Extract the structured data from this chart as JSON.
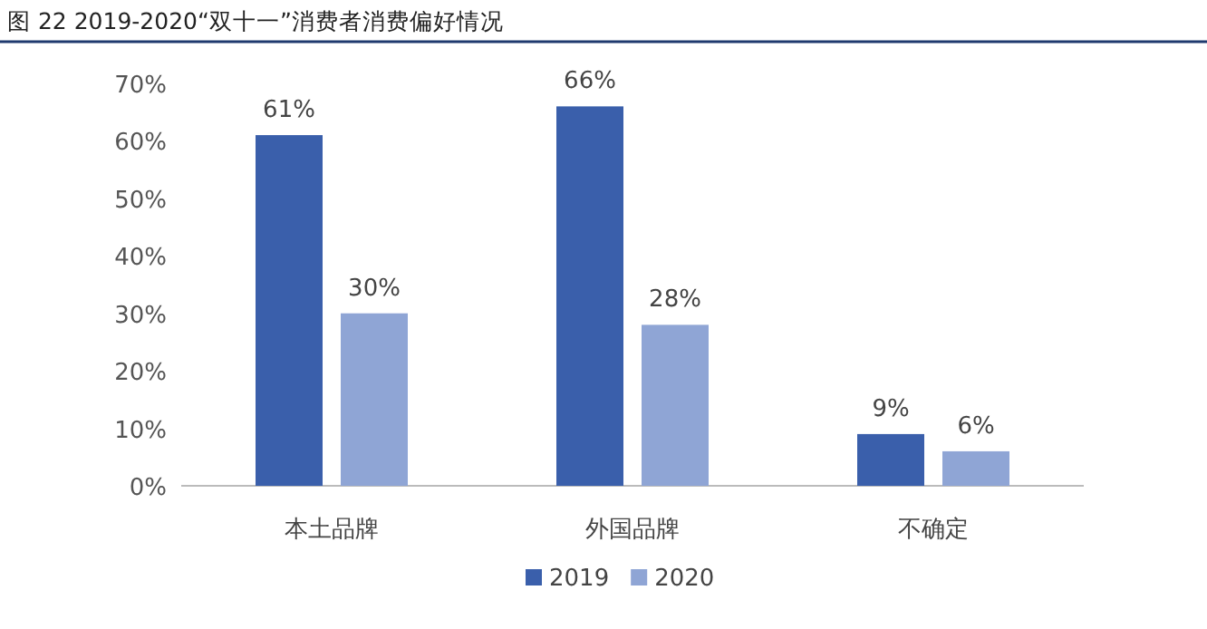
{
  "chart_data": {
    "type": "bar",
    "title": "图 22 2019-2020“双十一”消费者消费偏好情况",
    "categories": [
      "本土品牌",
      "外国品牌",
      "不确定"
    ],
    "series": [
      {
        "name": "2019",
        "color": "#3a5fab",
        "values": [
          61,
          66,
          9
        ],
        "value_labels": [
          "61%",
          "66%",
          "9%"
        ]
      },
      {
        "name": "2020",
        "color": "#8fa5d5",
        "values": [
          30,
          28,
          6
        ],
        "value_labels": [
          "30%",
          "28%",
          "6%"
        ]
      }
    ],
    "ylim": [
      0,
      70
    ],
    "yticks": [
      {
        "value": 0,
        "label": "0%"
      },
      {
        "value": 10,
        "label": "10%"
      },
      {
        "value": 20,
        "label": "20%"
      },
      {
        "value": 30,
        "label": "30%"
      },
      {
        "value": 40,
        "label": "40%"
      },
      {
        "value": 50,
        "label": "50%"
      },
      {
        "value": 60,
        "label": "60%"
      },
      {
        "value": 70,
        "label": "70%"
      }
    ],
    "grid": false,
    "legend": "bottom"
  }
}
